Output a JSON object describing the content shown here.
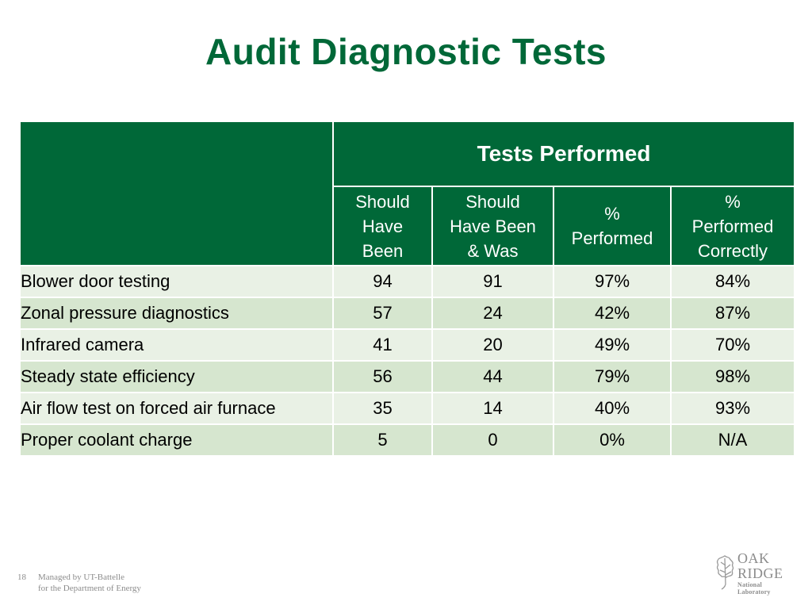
{
  "slide": {
    "title": "Audit Diagnostic Tests"
  },
  "table": {
    "group_header": "Tests Performed",
    "columns": [
      {
        "line1": "Should",
        "line2": "Have",
        "line3": "Been"
      },
      {
        "line1": "Should",
        "line2": "Have Been",
        "line3": "& Was"
      },
      {
        "line1": "%",
        "line2": "Performed",
        "line3": ""
      },
      {
        "line1": "%",
        "line2": "Performed",
        "line3": "Correctly"
      }
    ],
    "rows": [
      {
        "label": "Blower door testing",
        "should": "94",
        "was": "91",
        "pct": "97%",
        "correct": "84%"
      },
      {
        "label": "Zonal pressure diagnostics",
        "should": "57",
        "was": "24",
        "pct": "42%",
        "correct": "87%"
      },
      {
        "label": "Infrared camera",
        "should": "41",
        "was": "20",
        "pct": "49%",
        "correct": "70%"
      },
      {
        "label": "Steady state efficiency",
        "should": "56",
        "was": "44",
        "pct": "79%",
        "correct": "98%"
      },
      {
        "label": "Air flow test on forced air furnace",
        "should": "35",
        "was": "14",
        "pct": "40%",
        "correct": "93%"
      },
      {
        "label": "Proper coolant charge",
        "should": "5",
        "was": "0",
        "pct": "0%",
        "correct": "N/A"
      }
    ]
  },
  "footer": {
    "page_number": "18",
    "line1": "Managed by UT-Battelle",
    "line2": "for the Department of Energy"
  },
  "logo": {
    "icon": "oak-leaf-icon",
    "line1": "OAK",
    "line2": "RIDGE",
    "line3": "National Laboratory"
  },
  "colors": {
    "brand_green": "#006838",
    "row_light": "#e9f1e5",
    "row_dark": "#d6e6cf",
    "footer_gray": "#8c8c8c"
  }
}
